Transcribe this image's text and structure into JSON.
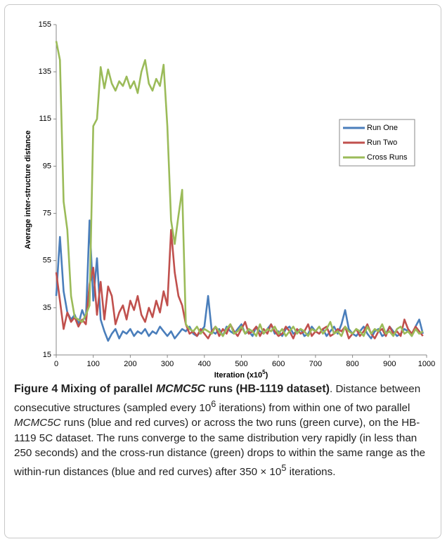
{
  "chart_data": {
    "type": "line",
    "y_label": "Average inter-structure distance",
    "x_label": [
      "Iteration (x10",
      "5",
      ")"
    ],
    "x": [
      0,
      10,
      20,
      30,
      40,
      50,
      60,
      70,
      80,
      90,
      100,
      110,
      120,
      130,
      140,
      150,
      160,
      170,
      180,
      190,
      200,
      210,
      220,
      230,
      240,
      250,
      260,
      270,
      280,
      290,
      300,
      310,
      320,
      330,
      340,
      350,
      360,
      370,
      380,
      390,
      400,
      410,
      420,
      430,
      440,
      450,
      460,
      470,
      480,
      490,
      500,
      510,
      520,
      530,
      540,
      550,
      560,
      570,
      580,
      590,
      600,
      610,
      620,
      630,
      640,
      650,
      660,
      670,
      680,
      690,
      700,
      710,
      720,
      730,
      740,
      750,
      760,
      770,
      780,
      790,
      800,
      810,
      820,
      830,
      840,
      850,
      860,
      870,
      880,
      890,
      900,
      910,
      920,
      930,
      940,
      950,
      960,
      970,
      980,
      990
    ],
    "series": [
      {
        "name": "Run One",
        "color": "#4a7ebb",
        "values": [
          40,
          65,
          42,
          33,
          30,
          32,
          28,
          34,
          30,
          72,
          38,
          56,
          30,
          25,
          21,
          24,
          26,
          22,
          25,
          24,
          26,
          23,
          25,
          24,
          26,
          23,
          25,
          24,
          27,
          25,
          23,
          25,
          22,
          24,
          26,
          25,
          27,
          24,
          23,
          25,
          27,
          40,
          25,
          24,
          26,
          23,
          27,
          25,
          24,
          26,
          28,
          24,
          25,
          23,
          27,
          25,
          24,
          26,
          28,
          24,
          25,
          23,
          26,
          27,
          24,
          25,
          26,
          23,
          24,
          27,
          25,
          24,
          26,
          23,
          25,
          27,
          24,
          28,
          34,
          26,
          24,
          23,
          25,
          27,
          24,
          22,
          25,
          26,
          23,
          24,
          27,
          25,
          23,
          24,
          26,
          25,
          23,
          27,
          30,
          24
        ]
      },
      {
        "name": "Run Two",
        "color": "#c0504d",
        "values": [
          50,
          38,
          26,
          33,
          29,
          31,
          27,
          30,
          28,
          45,
          52,
          32,
          46,
          30,
          44,
          40,
          28,
          33,
          36,
          30,
          38,
          34,
          40,
          32,
          29,
          35,
          31,
          38,
          33,
          42,
          36,
          68,
          50,
          40,
          36,
          28,
          24,
          25,
          23,
          26,
          24,
          22,
          25,
          27,
          23,
          26,
          24,
          28,
          25,
          23,
          26,
          29,
          24,
          25,
          27,
          23,
          26,
          24,
          28,
          25,
          23,
          24,
          27,
          25,
          22,
          26,
          24,
          25,
          28,
          23,
          25,
          24,
          26,
          27,
          23,
          24,
          26,
          25,
          27,
          22,
          24,
          26,
          23,
          25,
          28,
          24,
          22,
          25,
          26,
          23,
          27,
          24,
          25,
          23,
          30,
          26,
          24,
          27,
          25,
          23
        ]
      },
      {
        "name": "Cross Runs",
        "color": "#9bbb59",
        "values": [
          148,
          140,
          80,
          68,
          40,
          31,
          30,
          29,
          32,
          36,
          112,
          115,
          137,
          128,
          136,
          130,
          127,
          131,
          129,
          133,
          128,
          131,
          126,
          135,
          140,
          130,
          127,
          132,
          129,
          138,
          112,
          72,
          62,
          74,
          85,
          28,
          26,
          25,
          27,
          24,
          26,
          25,
          24,
          27,
          25,
          23,
          26,
          28,
          24,
          25,
          27,
          24,
          26,
          25,
          23,
          28,
          24,
          26,
          25,
          27,
          24,
          26,
          23,
          25,
          27,
          24,
          26,
          25,
          23,
          26,
          25,
          27,
          24,
          26,
          29,
          24,
          25,
          23,
          27,
          25,
          24,
          26,
          25,
          23,
          27,
          24,
          26,
          25,
          28,
          24,
          25,
          23,
          26,
          27,
          24,
          25,
          23,
          26,
          24,
          25
        ]
      }
    ],
    "xlim": [
      0,
      1000
    ],
    "xticks": [
      0,
      100,
      200,
      300,
      400,
      500,
      600,
      700,
      800,
      900,
      1000
    ],
    "ylim": [
      15,
      155
    ],
    "yticks": [
      15,
      35,
      55,
      75,
      95,
      115,
      135,
      155
    ],
    "grid": false,
    "legend": "right"
  },
  "caption": {
    "title": [
      "Figure 4 Mixing of parallel ",
      "MCMC5C",
      " runs (HB-1119 dataset)",
      "."
    ],
    "body": [
      "Distance between consecutive structures (sampled every 10",
      "6",
      " iterations) from within one of two parallel ",
      "MCMC5C",
      " runs (blue and red curves) or across the two runs (green curve), on the HB-1119 5C dataset. The runs converge to the same distribution very rapidly (in less than 250 seconds) and the cross-run distance (green) drops to within the same range as the within-run distances (blue and red curves) after 350 × 10",
      "5",
      " iterations."
    ]
  }
}
